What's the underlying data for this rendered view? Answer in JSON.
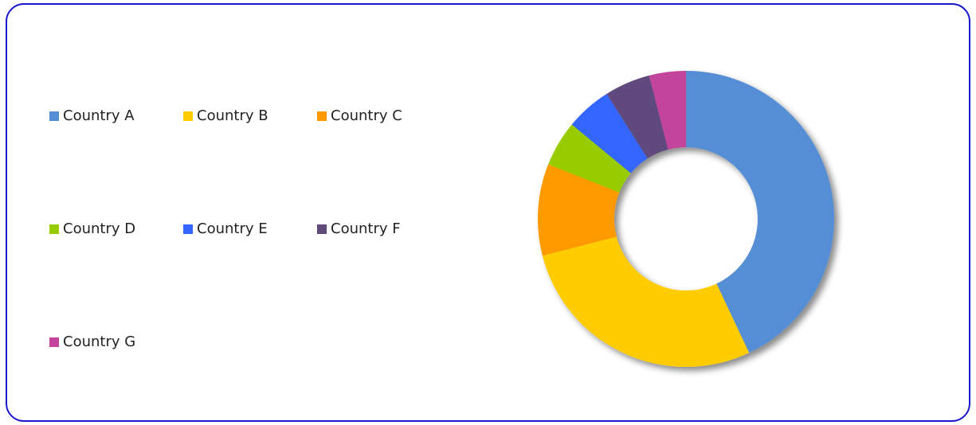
{
  "chart_data": {
    "type": "donut",
    "categories": [
      "Country A",
      "Country B",
      "Country C",
      "Country D",
      "Country E",
      "Country F",
      "Country G"
    ],
    "values": [
      43,
      28,
      10,
      5,
      5,
      5,
      4
    ],
    "colors": [
      "#558ed5",
      "#ffcc00",
      "#ff9900",
      "#99cc00",
      "#3366ff",
      "#604a7b",
      "#c2449b"
    ],
    "legend": "left"
  }
}
